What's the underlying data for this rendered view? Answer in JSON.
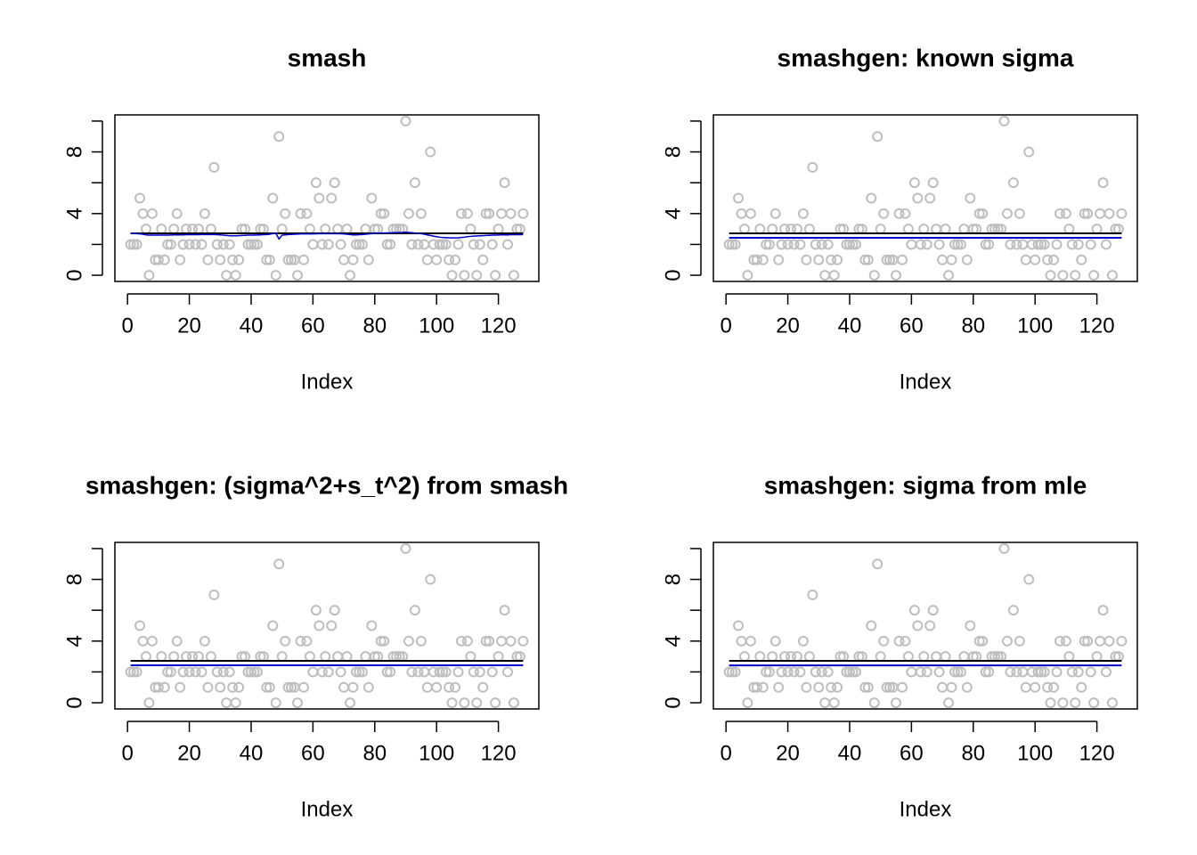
{
  "chart_data": [
    {
      "type": "scatter",
      "title": "smash",
      "xlabel": "Index",
      "x": [
        1,
        2,
        3,
        4,
        5,
        6,
        7,
        8,
        9,
        10,
        11,
        12,
        13,
        14,
        15,
        16,
        17,
        18,
        19,
        20,
        21,
        22,
        23,
        24,
        25,
        26,
        27,
        28,
        29,
        30,
        31,
        32,
        33,
        34,
        35,
        36,
        37,
        38,
        39,
        40,
        41,
        42,
        43,
        44,
        45,
        46,
        47,
        48,
        49,
        50,
        51,
        52,
        53,
        54,
        55,
        56,
        57,
        58,
        59,
        60,
        61,
        62,
        63,
        64,
        65,
        66,
        67,
        68,
        69,
        70,
        71,
        72,
        73,
        74,
        75,
        76,
        77,
        78,
        79,
        80,
        81,
        82,
        83,
        84,
        85,
        86,
        87,
        88,
        89,
        90,
        91,
        92,
        93,
        94,
        95,
        96,
        97,
        98,
        99,
        100,
        101,
        102,
        103,
        104,
        105,
        106,
        107,
        108,
        109,
        110,
        111,
        112,
        113,
        114,
        115,
        116,
        117,
        118,
        119,
        120,
        121,
        122,
        123,
        124,
        125,
        126,
        127,
        128
      ],
      "series": [
        {
          "kind": "points",
          "color": "#bebebe",
          "values": [
            2,
            2,
            2,
            5,
            4,
            3,
            0,
            4,
            1,
            1,
            3,
            1,
            2,
            2,
            3,
            4,
            1,
            2,
            3,
            2,
            3,
            2,
            3,
            2,
            4,
            1,
            3,
            7,
            2,
            1,
            2,
            0,
            2,
            1,
            0,
            1,
            3,
            3,
            2,
            2,
            2,
            2,
            3,
            3,
            1,
            1,
            5,
            0,
            9,
            3,
            4,
            1,
            1,
            1,
            0,
            4,
            1,
            4,
            3,
            2,
            6,
            5,
            2,
            3,
            2,
            5,
            6,
            3,
            2,
            1,
            3,
            0,
            1,
            2,
            2,
            2,
            3,
            1,
            5,
            3,
            3,
            4,
            4,
            2,
            2,
            3,
            3,
            3,
            3,
            10,
            4,
            2,
            6,
            2,
            4,
            2,
            1,
            8,
            2,
            1,
            2,
            2,
            2,
            1,
            0,
            1,
            2,
            4,
            0,
            4,
            3,
            2,
            0,
            2,
            1,
            4,
            4,
            2,
            0,
            3,
            4,
            6,
            2,
            4,
            0,
            3,
            3,
            4
          ]
        },
        {
          "kind": "line",
          "color": "#0000cd",
          "values": [
            2.72,
            2.71,
            2.7,
            2.68,
            2.66,
            2.62,
            2.6,
            2.6,
            2.6,
            2.6,
            2.6,
            2.6,
            2.6,
            2.61,
            2.62,
            2.62,
            2.62,
            2.62,
            2.63,
            2.63,
            2.63,
            2.63,
            2.63,
            2.64,
            2.64,
            2.64,
            2.64,
            2.64,
            2.63,
            2.62,
            2.6,
            2.58,
            2.56,
            2.56,
            2.56,
            2.57,
            2.58,
            2.59,
            2.6,
            2.6,
            2.6,
            2.61,
            2.62,
            2.63,
            2.64,
            2.66,
            2.7,
            2.72,
            2.35,
            2.6,
            2.62,
            2.64,
            2.65,
            2.66,
            2.67,
            2.68,
            2.68,
            2.68,
            2.68,
            2.68,
            2.69,
            2.7,
            2.7,
            2.7,
            2.7,
            2.7,
            2.7,
            2.7,
            2.69,
            2.68,
            2.66,
            2.64,
            2.62,
            2.62,
            2.63,
            2.64,
            2.66,
            2.68,
            2.7,
            2.72,
            2.73,
            2.74,
            2.74,
            2.75,
            2.75,
            2.76,
            2.76,
            2.77,
            2.78,
            2.8,
            2.78,
            2.76,
            2.74,
            2.72,
            2.7,
            2.66,
            2.62,
            2.58,
            2.54,
            2.5,
            2.47,
            2.45,
            2.44,
            2.43,
            2.42,
            2.42,
            2.43,
            2.45,
            2.47,
            2.5,
            2.52,
            2.54,
            2.55,
            2.56,
            2.57,
            2.58,
            2.59,
            2.6,
            2.6,
            2.61,
            2.62,
            2.62,
            2.62,
            2.63,
            2.63,
            2.63,
            2.63,
            2.64
          ]
        }
      ],
      "hlines": [
        {
          "value": 2.72,
          "color": "#000000"
        }
      ],
      "xlim": [
        -4.08,
        133.08
      ],
      "xticks": [
        0,
        20,
        40,
        60,
        80,
        100,
        120
      ],
      "ylim": [
        -0.4,
        10.4
      ],
      "yticks": [
        0,
        {
          "value": 2,
          "label": null
        },
        4,
        {
          "value": 6,
          "label": null
        },
        8,
        {
          "value": 10,
          "label": null
        }
      ]
    },
    {
      "type": "scatter",
      "title": "smashgen: known sigma",
      "xlabel": "Index",
      "x": [
        1,
        2,
        3,
        4,
        5,
        6,
        7,
        8,
        9,
        10,
        11,
        12,
        13,
        14,
        15,
        16,
        17,
        18,
        19,
        20,
        21,
        22,
        23,
        24,
        25,
        26,
        27,
        28,
        29,
        30,
        31,
        32,
        33,
        34,
        35,
        36,
        37,
        38,
        39,
        40,
        41,
        42,
        43,
        44,
        45,
        46,
        47,
        48,
        49,
        50,
        51,
        52,
        53,
        54,
        55,
        56,
        57,
        58,
        59,
        60,
        61,
        62,
        63,
        64,
        65,
        66,
        67,
        68,
        69,
        70,
        71,
        72,
        73,
        74,
        75,
        76,
        77,
        78,
        79,
        80,
        81,
        82,
        83,
        84,
        85,
        86,
        87,
        88,
        89,
        90,
        91,
        92,
        93,
        94,
        95,
        96,
        97,
        98,
        99,
        100,
        101,
        102,
        103,
        104,
        105,
        106,
        107,
        108,
        109,
        110,
        111,
        112,
        113,
        114,
        115,
        116,
        117,
        118,
        119,
        120,
        121,
        122,
        123,
        124,
        125,
        126,
        127,
        128
      ],
      "series": [
        {
          "kind": "points",
          "color": "#bebebe",
          "values": [
            2,
            2,
            2,
            5,
            4,
            3,
            0,
            4,
            1,
            1,
            3,
            1,
            2,
            2,
            3,
            4,
            1,
            2,
            3,
            2,
            3,
            2,
            3,
            2,
            4,
            1,
            3,
            7,
            2,
            1,
            2,
            0,
            2,
            1,
            0,
            1,
            3,
            3,
            2,
            2,
            2,
            2,
            3,
            3,
            1,
            1,
            5,
            0,
            9,
            3,
            4,
            1,
            1,
            1,
            0,
            4,
            1,
            4,
            3,
            2,
            6,
            5,
            2,
            3,
            2,
            5,
            6,
            3,
            2,
            1,
            3,
            0,
            1,
            2,
            2,
            2,
            3,
            1,
            5,
            3,
            3,
            4,
            4,
            2,
            2,
            3,
            3,
            3,
            3,
            10,
            4,
            2,
            6,
            2,
            4,
            2,
            1,
            8,
            2,
            1,
            2,
            2,
            2,
            1,
            0,
            1,
            2,
            4,
            0,
            4,
            3,
            2,
            0,
            2,
            1,
            4,
            4,
            2,
            0,
            3,
            4,
            6,
            2,
            4,
            0,
            3,
            3,
            4
          ]
        }
      ],
      "hlines": [
        {
          "value": 2.72,
          "color": "#000000"
        },
        {
          "value": 2.43,
          "color": "#0000cd"
        }
      ],
      "xlim": [
        -4.08,
        133.08
      ],
      "xticks": [
        0,
        20,
        40,
        60,
        80,
        100,
        120
      ],
      "ylim": [
        -0.4,
        10.4
      ],
      "yticks": [
        0,
        {
          "value": 2,
          "label": null
        },
        4,
        {
          "value": 6,
          "label": null
        },
        8,
        {
          "value": 10,
          "label": null
        }
      ]
    },
    {
      "type": "scatter",
      "title": "smashgen: (sigma^2+s_t^2) from smash",
      "xlabel": "Index",
      "x": [
        1,
        2,
        3,
        4,
        5,
        6,
        7,
        8,
        9,
        10,
        11,
        12,
        13,
        14,
        15,
        16,
        17,
        18,
        19,
        20,
        21,
        22,
        23,
        24,
        25,
        26,
        27,
        28,
        29,
        30,
        31,
        32,
        33,
        34,
        35,
        36,
        37,
        38,
        39,
        40,
        41,
        42,
        43,
        44,
        45,
        46,
        47,
        48,
        49,
        50,
        51,
        52,
        53,
        54,
        55,
        56,
        57,
        58,
        59,
        60,
        61,
        62,
        63,
        64,
        65,
        66,
        67,
        68,
        69,
        70,
        71,
        72,
        73,
        74,
        75,
        76,
        77,
        78,
        79,
        80,
        81,
        82,
        83,
        84,
        85,
        86,
        87,
        88,
        89,
        90,
        91,
        92,
        93,
        94,
        95,
        96,
        97,
        98,
        99,
        100,
        101,
        102,
        103,
        104,
        105,
        106,
        107,
        108,
        109,
        110,
        111,
        112,
        113,
        114,
        115,
        116,
        117,
        118,
        119,
        120,
        121,
        122,
        123,
        124,
        125,
        126,
        127,
        128
      ],
      "series": [
        {
          "kind": "points",
          "color": "#bebebe",
          "values": [
            2,
            2,
            2,
            5,
            4,
            3,
            0,
            4,
            1,
            1,
            3,
            1,
            2,
            2,
            3,
            4,
            1,
            2,
            3,
            2,
            3,
            2,
            3,
            2,
            4,
            1,
            3,
            7,
            2,
            1,
            2,
            0,
            2,
            1,
            0,
            1,
            3,
            3,
            2,
            2,
            2,
            2,
            3,
            3,
            1,
            1,
            5,
            0,
            9,
            3,
            4,
            1,
            1,
            1,
            0,
            4,
            1,
            4,
            3,
            2,
            6,
            5,
            2,
            3,
            2,
            5,
            6,
            3,
            2,
            1,
            3,
            0,
            1,
            2,
            2,
            2,
            3,
            1,
            5,
            3,
            3,
            4,
            4,
            2,
            2,
            3,
            3,
            3,
            3,
            10,
            4,
            2,
            6,
            2,
            4,
            2,
            1,
            8,
            2,
            1,
            2,
            2,
            2,
            1,
            0,
            1,
            2,
            4,
            0,
            4,
            3,
            2,
            0,
            2,
            1,
            4,
            4,
            2,
            0,
            3,
            4,
            6,
            2,
            4,
            0,
            3,
            3,
            4
          ]
        }
      ],
      "hlines": [
        {
          "value": 2.72,
          "color": "#000000"
        },
        {
          "value": 2.43,
          "color": "#0000cd"
        }
      ],
      "xlim": [
        -4.08,
        133.08
      ],
      "xticks": [
        0,
        20,
        40,
        60,
        80,
        100,
        120
      ],
      "ylim": [
        -0.4,
        10.4
      ],
      "yticks": [
        0,
        {
          "value": 2,
          "label": null
        },
        4,
        {
          "value": 6,
          "label": null
        },
        8,
        {
          "value": 10,
          "label": null
        }
      ]
    },
    {
      "type": "scatter",
      "title": "smashgen: sigma from mle",
      "xlabel": "Index",
      "x": [
        1,
        2,
        3,
        4,
        5,
        6,
        7,
        8,
        9,
        10,
        11,
        12,
        13,
        14,
        15,
        16,
        17,
        18,
        19,
        20,
        21,
        22,
        23,
        24,
        25,
        26,
        27,
        28,
        29,
        30,
        31,
        32,
        33,
        34,
        35,
        36,
        37,
        38,
        39,
        40,
        41,
        42,
        43,
        44,
        45,
        46,
        47,
        48,
        49,
        50,
        51,
        52,
        53,
        54,
        55,
        56,
        57,
        58,
        59,
        60,
        61,
        62,
        63,
        64,
        65,
        66,
        67,
        68,
        69,
        70,
        71,
        72,
        73,
        74,
        75,
        76,
        77,
        78,
        79,
        80,
        81,
        82,
        83,
        84,
        85,
        86,
        87,
        88,
        89,
        90,
        91,
        92,
        93,
        94,
        95,
        96,
        97,
        98,
        99,
        100,
        101,
        102,
        103,
        104,
        105,
        106,
        107,
        108,
        109,
        110,
        111,
        112,
        113,
        114,
        115,
        116,
        117,
        118,
        119,
        120,
        121,
        122,
        123,
        124,
        125,
        126,
        127,
        128
      ],
      "series": [
        {
          "kind": "points",
          "color": "#bebebe",
          "values": [
            2,
            2,
            2,
            5,
            4,
            3,
            0,
            4,
            1,
            1,
            3,
            1,
            2,
            2,
            3,
            4,
            1,
            2,
            3,
            2,
            3,
            2,
            3,
            2,
            4,
            1,
            3,
            7,
            2,
            1,
            2,
            0,
            2,
            1,
            0,
            1,
            3,
            3,
            2,
            2,
            2,
            2,
            3,
            3,
            1,
            1,
            5,
            0,
            9,
            3,
            4,
            1,
            1,
            1,
            0,
            4,
            1,
            4,
            3,
            2,
            6,
            5,
            2,
            3,
            2,
            5,
            6,
            3,
            2,
            1,
            3,
            0,
            1,
            2,
            2,
            2,
            3,
            1,
            5,
            3,
            3,
            4,
            4,
            2,
            2,
            3,
            3,
            3,
            3,
            10,
            4,
            2,
            6,
            2,
            4,
            2,
            1,
            8,
            2,
            1,
            2,
            2,
            2,
            1,
            0,
            1,
            2,
            4,
            0,
            4,
            3,
            2,
            0,
            2,
            1,
            4,
            4,
            2,
            0,
            3,
            4,
            6,
            2,
            4,
            0,
            3,
            3,
            4
          ]
        }
      ],
      "hlines": [
        {
          "value": 2.72,
          "color": "#000000"
        },
        {
          "value": 2.42,
          "color": "#0000cd"
        }
      ],
      "xlim": [
        -4.08,
        133.08
      ],
      "xticks": [
        0,
        20,
        40,
        60,
        80,
        100,
        120
      ],
      "ylim": [
        -0.4,
        10.4
      ],
      "yticks": [
        0,
        {
          "value": 2,
          "label": null
        },
        4,
        {
          "value": 6,
          "label": null
        },
        8,
        {
          "value": 10,
          "label": null
        }
      ]
    }
  ]
}
